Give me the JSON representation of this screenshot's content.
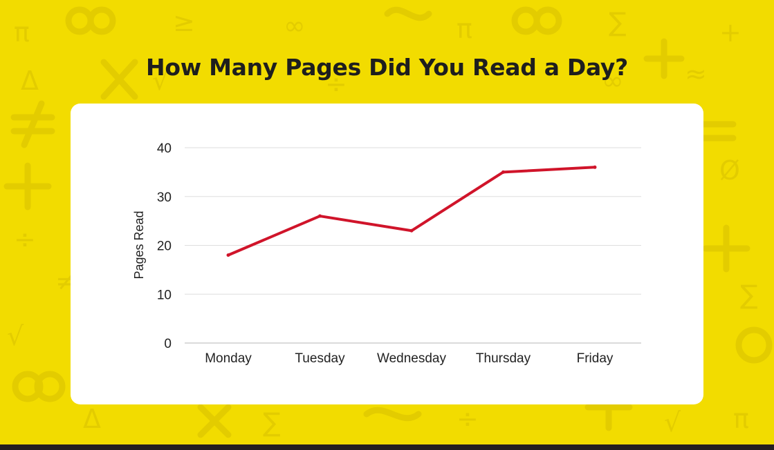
{
  "title": "How Many Pages Did You Read a Day?",
  "colors": {
    "background": "#f2dc00",
    "pattern": "#e3cc00",
    "line": "#d0142a",
    "card": "#ffffff",
    "bottom_bar": "#231f20"
  },
  "chart_data": {
    "type": "line",
    "title": "How Many Pages Did You Read a Day?",
    "xlabel": "",
    "ylabel": "Pages Read",
    "categories": [
      "Monday",
      "Tuesday",
      "Wednesday",
      "Thursday",
      "Friday"
    ],
    "series": [
      {
        "values": [
          18,
          26,
          23,
          35,
          36
        ]
      }
    ],
    "ylim": [
      0,
      40
    ],
    "yticks": [
      0,
      10,
      20,
      30,
      40
    ],
    "grid": true,
    "legend": "none"
  }
}
